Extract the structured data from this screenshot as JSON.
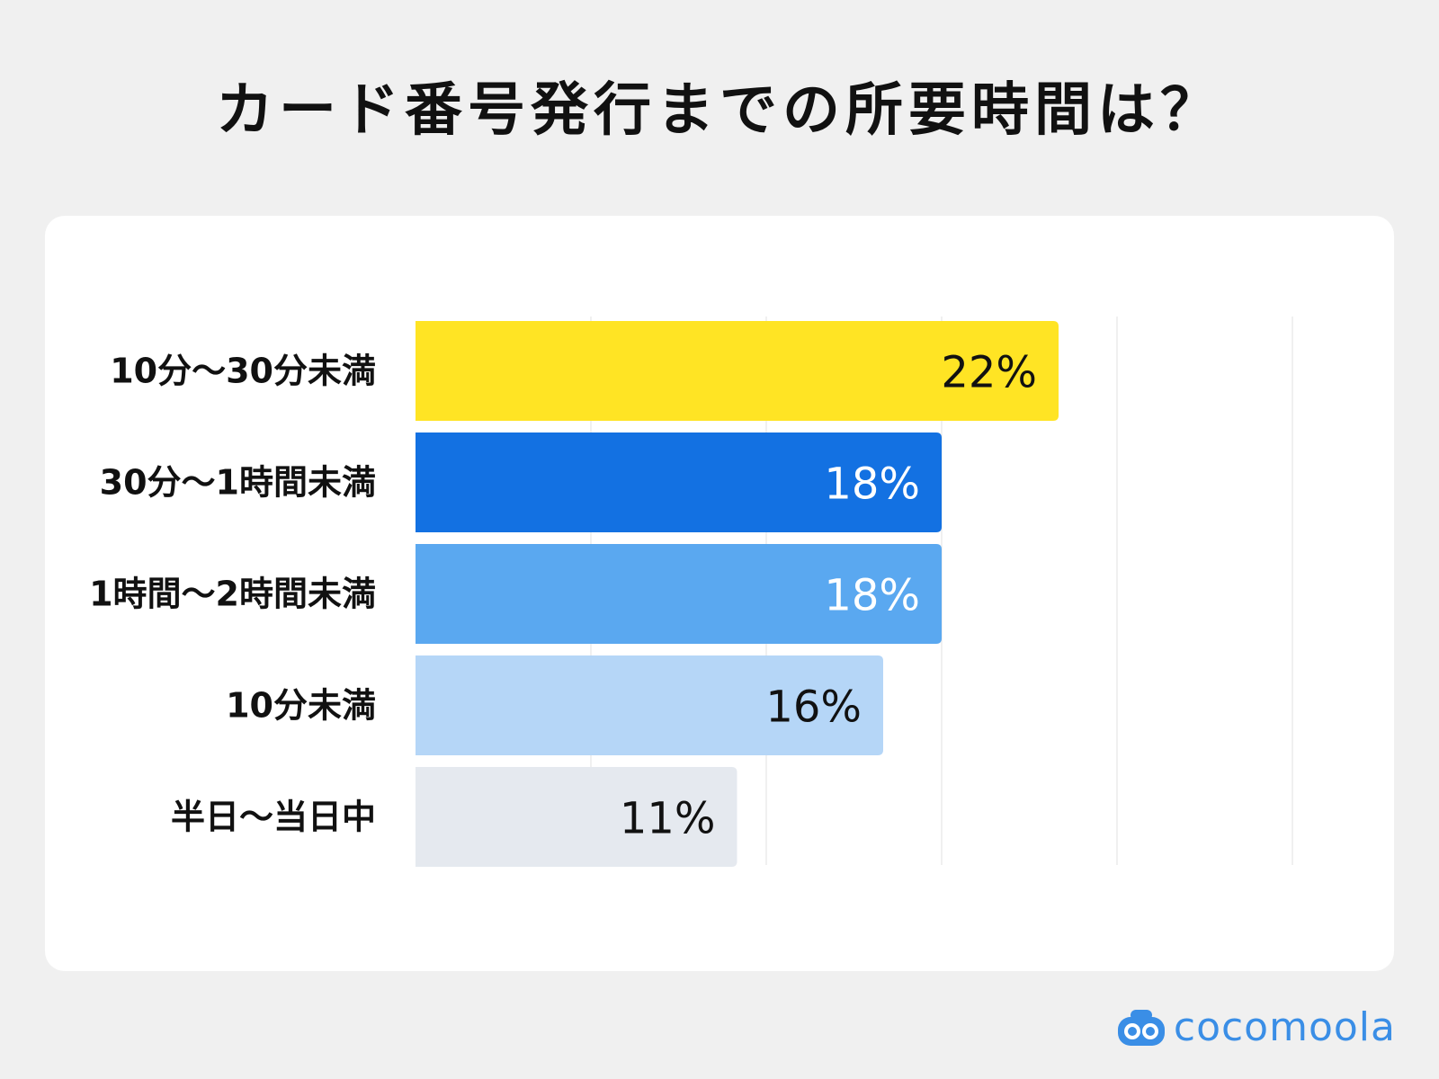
{
  "title": "カード番号発行までの所要時間は？",
  "brand": {
    "name": "cocomoola",
    "color": "#3a8ee6",
    "icon": "cocomoola-logo-icon"
  },
  "chart_data": {
    "type": "bar",
    "orientation": "horizontal",
    "title": "カード番号発行までの所要時間は？",
    "categories": [
      "10分〜30分未満",
      "30分〜1時間未満",
      "1時間〜2時間未満",
      "10分未満",
      "半日〜当日中"
    ],
    "values": [
      22,
      18,
      18,
      16,
      11
    ],
    "value_labels": [
      "22%",
      "18%",
      "18%",
      "16%",
      "11%"
    ],
    "unit": "%",
    "xlim": [
      0,
      30
    ],
    "grid": true,
    "colors": [
      "#ffe424",
      "#1371e2",
      "#5aa8f0",
      "#b5d6f7",
      "#e5e9ef"
    ],
    "label_colors": [
      "#111111",
      "#ffffff",
      "#ffffff",
      "#111111",
      "#111111"
    ]
  }
}
